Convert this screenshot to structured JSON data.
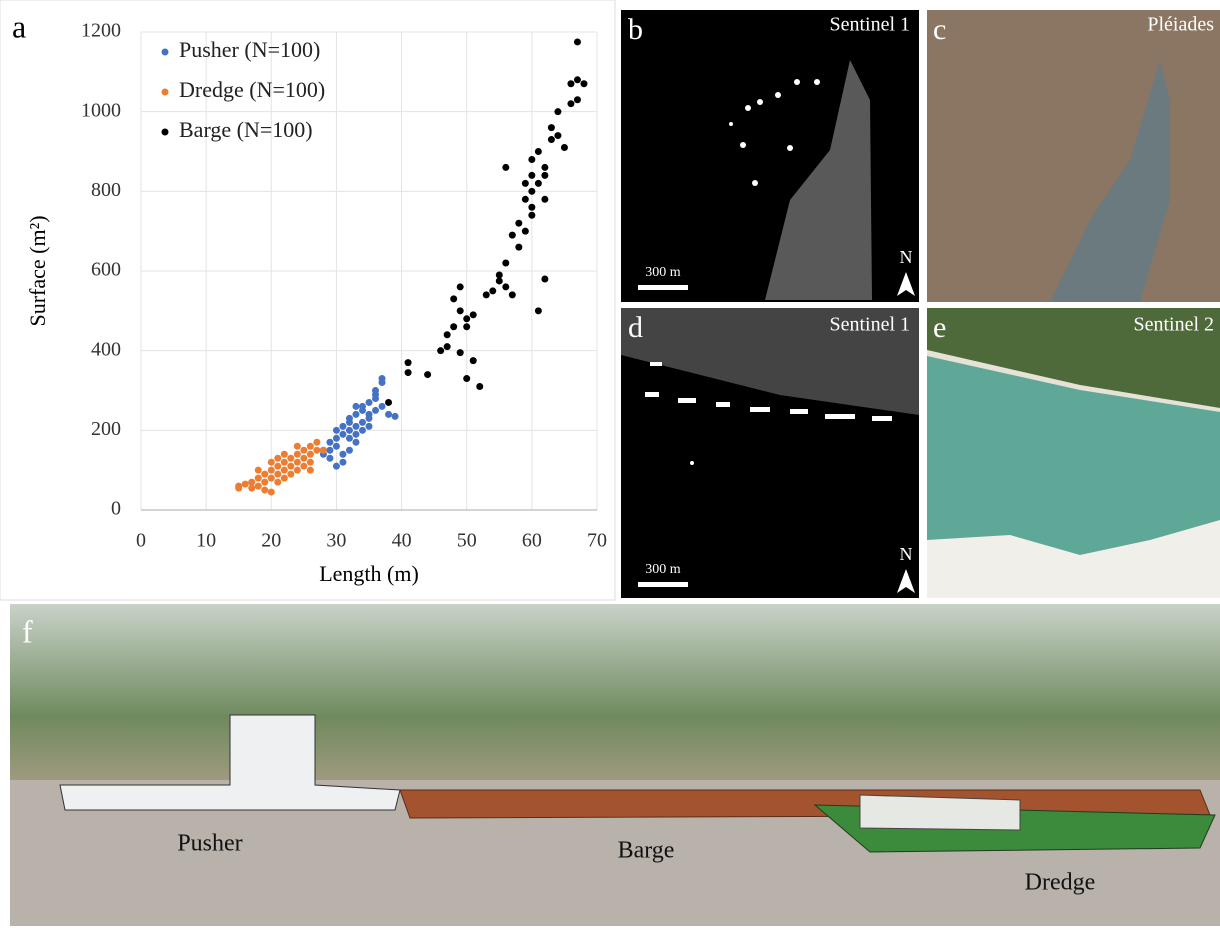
{
  "chart_data": {
    "type": "scatter",
    "xlabel": "Length (m)",
    "ylabel": "Surface (m²)",
    "xlim": [
      0,
      70
    ],
    "xticks": [
      0,
      10,
      20,
      30,
      40,
      50,
      60,
      70
    ],
    "ylim": [
      0,
      1200
    ],
    "yticks": [
      0,
      200,
      400,
      600,
      800,
      1000,
      1200
    ],
    "grid": true,
    "legend": "upper left",
    "series": [
      {
        "name": "Pusher (N=100)",
        "color": "#4472c4",
        "x": [
          28,
          29,
          29,
          30,
          30,
          30,
          31,
          31,
          31,
          32,
          32,
          32,
          32,
          33,
          33,
          33,
          33,
          34,
          34,
          34,
          35,
          35,
          35,
          36,
          36,
          36,
          37,
          37,
          37,
          38,
          39,
          30,
          31,
          29,
          34,
          35,
          28,
          33,
          36,
          32
        ],
        "values": [
          150,
          170,
          130,
          180,
          200,
          160,
          210,
          190,
          140,
          220,
          200,
          180,
          230,
          240,
          210,
          190,
          170,
          250,
          220,
          260,
          240,
          270,
          230,
          280,
          250,
          300,
          320,
          330,
          260,
          240,
          235,
          110,
          120,
          150,
          200,
          210,
          140,
          260,
          290,
          150
        ]
      },
      {
        "name": "Dredge (N=100)",
        "color": "#ed7d31",
        "x": [
          15,
          15,
          16,
          17,
          17,
          18,
          18,
          19,
          19,
          19,
          20,
          20,
          20,
          21,
          21,
          21,
          22,
          22,
          22,
          23,
          23,
          23,
          24,
          24,
          24,
          25,
          25,
          25,
          26,
          26,
          26,
          27,
          27,
          28,
          20,
          22,
          24,
          18,
          21,
          26
        ],
        "values": [
          60,
          55,
          65,
          70,
          55,
          80,
          60,
          90,
          70,
          50,
          100,
          80,
          45,
          110,
          90,
          70,
          120,
          100,
          80,
          130,
          110,
          90,
          140,
          120,
          100,
          150,
          130,
          110,
          160,
          140,
          120,
          150,
          170,
          150,
          120,
          140,
          160,
          100,
          130,
          100
        ]
      },
      {
        "name": "Barge (N=100)",
        "color": "#000000",
        "x": [
          38,
          41,
          41,
          44,
          46,
          47,
          47,
          48,
          48,
          49,
          49,
          49,
          50,
          50,
          50,
          51,
          51,
          52,
          53,
          54,
          55,
          55,
          56,
          56,
          56,
          57,
          57,
          58,
          58,
          59,
          59,
          59,
          60,
          60,
          60,
          60,
          61,
          61,
          61,
          62,
          62,
          62,
          63,
          63,
          64,
          64,
          65,
          66,
          66,
          67,
          67,
          67,
          68,
          60,
          62
        ],
        "values": [
          270,
          370,
          345,
          340,
          400,
          440,
          410,
          460,
          530,
          500,
          560,
          395,
          480,
          330,
          460,
          375,
          490,
          310,
          540,
          550,
          590,
          575,
          560,
          620,
          860,
          540,
          690,
          660,
          720,
          700,
          780,
          820,
          760,
          840,
          800,
          880,
          820,
          500,
          900,
          580,
          780,
          840,
          960,
          930,
          1000,
          940,
          910,
          1070,
          1020,
          1080,
          1175,
          1030,
          1070,
          740,
          860
        ]
      }
    ]
  },
  "panels": [
    {
      "label": "a"
    },
    {
      "label": "b",
      "title": "Sentinel 1",
      "scale_bar": "300 m",
      "north": "N"
    },
    {
      "label": "c",
      "title": "Pléiades"
    },
    {
      "label": "d",
      "title": "Sentinel 1",
      "scale_bar": "300 m",
      "north": "N"
    },
    {
      "label": "e",
      "title": "Sentinel 2"
    },
    {
      "label": "f"
    }
  ],
  "photo_labels": [
    "Pusher",
    "Barge",
    "Dredge"
  ]
}
